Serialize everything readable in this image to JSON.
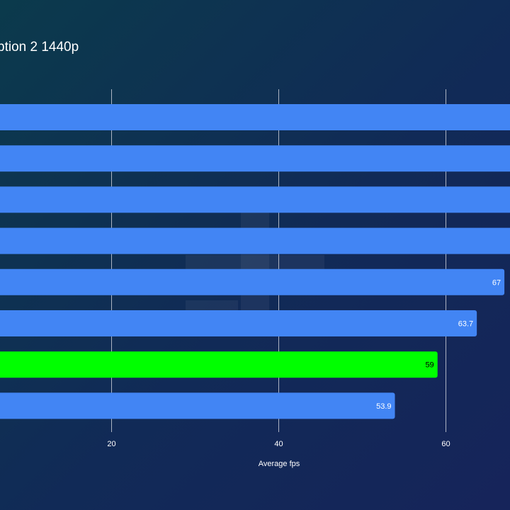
{
  "chart_data": {
    "type": "bar",
    "orientation": "horizontal",
    "title": "ption 2 1440p",
    "xlabel": "Average fps",
    "ylabel": "",
    "xticks": [
      20,
      40,
      60
    ],
    "values": [
      null,
      null,
      null,
      null,
      67,
      63.7,
      59,
      53.9
    ],
    "value_labels": [
      "",
      "",
      "",
      "",
      "67",
      "63.7",
      "59",
      "53.9"
    ],
    "highlight_index": 6,
    "grid": true,
    "colors": {
      "bar": "#4285f4",
      "highlight": "#00ff00",
      "label_on_bar": "#ffffff",
      "label_on_highlight": "#000000",
      "grid": "#c8ccd6"
    }
  }
}
